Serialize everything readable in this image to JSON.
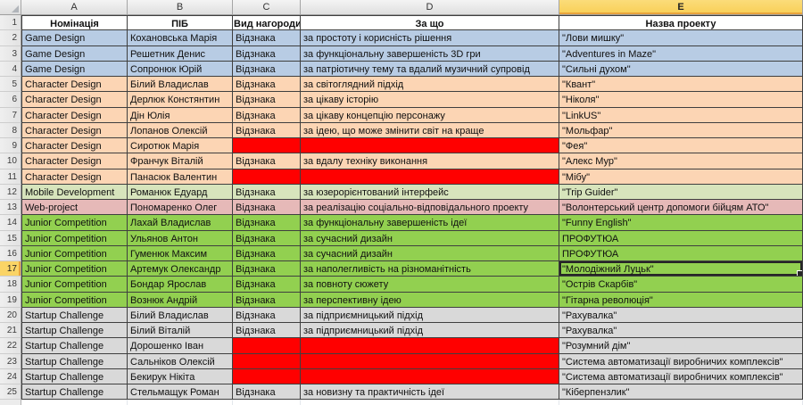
{
  "colors": {
    "game_design": "#B8CCE4",
    "character_design": "#FCD5B4",
    "mobile_development": "#D7E4BC",
    "web_project": "#E6B9B8",
    "junior_competition": "#92D050",
    "startup_challenge": "#D9D9D9",
    "empty_award": "#FF0000",
    "selection_highlight": "#FAD466",
    "selection_border_accent": "#E8A33D",
    "grid_border": "#3F3F3F"
  },
  "column_letters": [
    "A",
    "B",
    "C",
    "D",
    "E"
  ],
  "header_row": {
    "number": "1",
    "cells": [
      "Номінація",
      "ПІБ",
      "Вид нагороди",
      "За що",
      "Назва проекту"
    ]
  },
  "selection": {
    "cell": "E17",
    "selected_row": "17",
    "selected_col": "E"
  },
  "rows": [
    {
      "number": "2",
      "group": "game_design",
      "nomination": "Game Design",
      "name": "Кохановська Марія",
      "award": "Відзнака",
      "reason": "за простоту і корисність рішення",
      "project": "\"Лови мишку\"",
      "award_missing": false,
      "selected": false
    },
    {
      "number": "3",
      "group": "game_design",
      "nomination": "Game Design",
      "name": "Решетник Денис",
      "award": "Відзнака",
      "reason": "за функціональну завершеність 3D гри",
      "project": "\"Adventures in Maze\"",
      "award_missing": false,
      "selected": false
    },
    {
      "number": "4",
      "group": "game_design",
      "nomination": "Game Design",
      "name": "Сопронюк Юрій",
      "award": "Відзнака",
      "reason": "за патріотичну тему та вдалий музичний супровід",
      "project": "\"Сильні духом\"",
      "award_missing": false,
      "selected": false
    },
    {
      "number": "5",
      "group": "character_design",
      "nomination": "Character Design",
      "name": "Білий Владислав",
      "award": "Відзнака",
      "reason": "за світоглядний підхід",
      "project": "\"Квант\"",
      "award_missing": false,
      "selected": false
    },
    {
      "number": "6",
      "group": "character_design",
      "nomination": "Character Design",
      "name": "Дерлюк Констянтин",
      "award": "Відзнака",
      "reason": "за цікаву історію",
      "project": "\"Ніколя\"",
      "award_missing": false,
      "selected": false
    },
    {
      "number": "7",
      "group": "character_design",
      "nomination": "Character Design",
      "name": "Дін Юлія",
      "award": "Відзнака",
      "reason": "за цікаву концепцію персонажу",
      "project": "\"LinkUS\"",
      "award_missing": false,
      "selected": false
    },
    {
      "number": "8",
      "group": "character_design",
      "nomination": "Character Design",
      "name": "Лопанов Олексій",
      "award": "Відзнака",
      "reason": "за ідею, що може змінити світ на краще",
      "project": "\"Мольфар\"",
      "award_missing": false,
      "selected": false
    },
    {
      "number": "9",
      "group": "character_design",
      "nomination": "Character Design",
      "name": "Сиротюк Марія",
      "award": "",
      "reason": "",
      "project": "\"Фея\"",
      "award_missing": true,
      "selected": false
    },
    {
      "number": "10",
      "group": "character_design",
      "nomination": "Character Design",
      "name": "Франчук Віталій",
      "award": "Відзнака",
      "reason": "за вдалу техніку виконання",
      "project": "\"Алекс Мур\"",
      "award_missing": false,
      "selected": false
    },
    {
      "number": "11",
      "group": "character_design",
      "nomination": "Character Design",
      "name": "Панасюк Валентин",
      "award": "",
      "reason": "",
      "project": "\"Мібу\"",
      "award_missing": true,
      "selected": false
    },
    {
      "number": "12",
      "group": "mobile_development",
      "nomination": "Mobile Development",
      "name": "Романюк Едуард",
      "award": "Відзнака",
      "reason": "за юзерорієнтований інтерфейс",
      "project": "\"Trip Guider\"",
      "award_missing": false,
      "selected": false
    },
    {
      "number": "13",
      "group": "web_project",
      "nomination": "Web-project",
      "name": "Пономаренко Олег",
      "award": "Відзнака",
      "reason": "за реалізацію соціально-відповідального проекту",
      "project": "\"Волонтерський центр допомоги бійцям АТО\"",
      "award_missing": false,
      "selected": false
    },
    {
      "number": "14",
      "group": "junior_competition",
      "nomination": "Junior Competition",
      "name": "Лахай Владислав",
      "award": "Відзнака",
      "reason": "за функціональну завершеність ідеї",
      "project": "\"Funny English\"",
      "award_missing": false,
      "selected": false
    },
    {
      "number": "15",
      "group": "junior_competition",
      "nomination": "Junior Competition",
      "name": "Ульянов Антон",
      "award": "Відзнака",
      "reason": "за сучасний дизайн",
      "project": "ПРОФУТЮА",
      "award_missing": false,
      "selected": false
    },
    {
      "number": "16",
      "group": "junior_competition",
      "nomination": "Junior Competition",
      "name": "Гуменюк Максим",
      "award": "Відзнака",
      "reason": "за сучасний дизайн",
      "project": "ПРОФУТЮА",
      "award_missing": false,
      "selected": false
    },
    {
      "number": "17",
      "group": "junior_competition",
      "nomination": "Junior Competition",
      "name": "Артемук Олександр",
      "award": "Відзнака",
      "reason": "за наполегливість на різноманітність",
      "project": "\"Молодіжний Луцьк\"",
      "award_missing": false,
      "selected": true
    },
    {
      "number": "18",
      "group": "junior_competition",
      "nomination": "Junior Competition",
      "name": "Бондар Ярослав",
      "award": "Відзнака",
      "reason": "за повноту сюжету",
      "project": "\"Острів Скарбів\"",
      "award_missing": false,
      "selected": false
    },
    {
      "number": "19",
      "group": "junior_competition",
      "nomination": "Junior Competition",
      "name": "Вознюк Андрій",
      "award": "Відзнака",
      "reason": "за перспективну ідею",
      "project": "\"Гітарна революція\"",
      "award_missing": false,
      "selected": false
    },
    {
      "number": "20",
      "group": "startup_challenge",
      "nomination": "Startup Challenge",
      "name": "Білий Владислав",
      "award": "Відзнака",
      "reason": "за підприємницький підхід",
      "project": "\"Рахувалка\"",
      "award_missing": false,
      "selected": false
    },
    {
      "number": "21",
      "group": "startup_challenge",
      "nomination": "Startup Challenge",
      "name": "Білий Віталій",
      "award": "Відзнака",
      "reason": "за підприємницький підхід",
      "project": "\"Рахувалка\"",
      "award_missing": false,
      "selected": false
    },
    {
      "number": "22",
      "group": "startup_challenge",
      "nomination": "Startup Challenge",
      "name": "Дорошенко Іван",
      "award": "",
      "reason": "",
      "project": "\"Розумний дім\"",
      "award_missing": true,
      "selected": false
    },
    {
      "number": "23",
      "group": "startup_challenge",
      "nomination": "Startup Challenge",
      "name": "Сальніков Олексій",
      "award": "",
      "reason": "",
      "project": "\"Система автоматизації виробничих комплексів\"",
      "award_missing": true,
      "selected": false
    },
    {
      "number": "24",
      "group": "startup_challenge",
      "nomination": "Startup Challenge",
      "name": "Бекирук Нікіта",
      "award": "",
      "reason": "",
      "project": "\"Система автоматизації виробничих комплексів\"",
      "award_missing": true,
      "selected": false
    },
    {
      "number": "25",
      "group": "startup_challenge",
      "nomination": "Startup Challenge",
      "name": "Стельмащук Роман",
      "award": "Відзнака",
      "reason": "за новизну та практичність ідеї",
      "project": "\"Кіберпензлик\"",
      "award_missing": false,
      "selected": false
    }
  ]
}
